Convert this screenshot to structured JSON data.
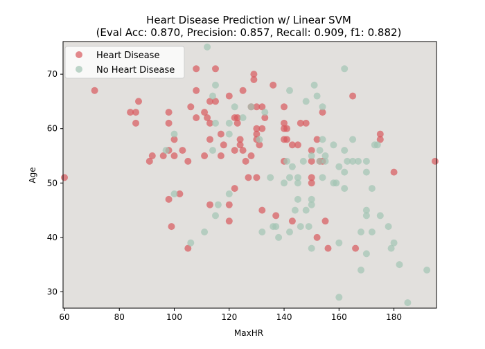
{
  "chart_data": {
    "type": "scatter",
    "title": "Heart Disease Prediction w/ Linear SVM",
    "subtitle": "(Eval Acc: 0.870, Precision: 0.857, Recall: 0.909, f1: 0.882)",
    "xlabel": "MaxHR",
    "ylabel": "Age",
    "xlim": [
      59.5,
      195.5
    ],
    "ylim": [
      27,
      76
    ],
    "xticks": [
      60,
      80,
      100,
      120,
      140,
      160,
      180
    ],
    "yticks": [
      30,
      40,
      50,
      60,
      70
    ],
    "background": "#e2e0dd",
    "legend_position": "upper-left",
    "series": [
      {
        "name": "Heart Disease",
        "color": "#d9585c",
        "points": [
          [
            60,
            51
          ],
          [
            71,
            67
          ],
          [
            84,
            63
          ],
          [
            86,
            63
          ],
          [
            87,
            65
          ],
          [
            86,
            61
          ],
          [
            91,
            54
          ],
          [
            92,
            55
          ],
          [
            96,
            55
          ],
          [
            98,
            63
          ],
          [
            98,
            61
          ],
          [
            98,
            56
          ],
          [
            100,
            58
          ],
          [
            100,
            55
          ],
          [
            98,
            47
          ],
          [
            99,
            42
          ],
          [
            102,
            48
          ],
          [
            103,
            56
          ],
          [
            105,
            54
          ],
          [
            105,
            38
          ],
          [
            106,
            64
          ],
          [
            108,
            71
          ],
          [
            108,
            67
          ],
          [
            108,
            62
          ],
          [
            111,
            63
          ],
          [
            111,
            55
          ],
          [
            112,
            62
          ],
          [
            113,
            65
          ],
          [
            113,
            61
          ],
          [
            113,
            58
          ],
          [
            113,
            46
          ],
          [
            115,
            71
          ],
          [
            115,
            65
          ],
          [
            117,
            59
          ],
          [
            117,
            55
          ],
          [
            118,
            57
          ],
          [
            120,
            66
          ],
          [
            120,
            46
          ],
          [
            120,
            43
          ],
          [
            122,
            56
          ],
          [
            122,
            49
          ],
          [
            122,
            62
          ],
          [
            123,
            62
          ],
          [
            123,
            61
          ],
          [
            124,
            58
          ],
          [
            124,
            57
          ],
          [
            125,
            67
          ],
          [
            125,
            56
          ],
          [
            126,
            54
          ],
          [
            127,
            51
          ],
          [
            128,
            55
          ],
          [
            128,
            64
          ],
          [
            129,
            70
          ],
          [
            129,
            69
          ],
          [
            130,
            64
          ],
          [
            130,
            60
          ],
          [
            130,
            59
          ],
          [
            130,
            58
          ],
          [
            130,
            51
          ],
          [
            131,
            57
          ],
          [
            132,
            64
          ],
          [
            132,
            60
          ],
          [
            132,
            45
          ],
          [
            133,
            62
          ],
          [
            136,
            68
          ],
          [
            137,
            44
          ],
          [
            140,
            64
          ],
          [
            140,
            61
          ],
          [
            140,
            60
          ],
          [
            140,
            58
          ],
          [
            140,
            54
          ],
          [
            141,
            60
          ],
          [
            141,
            58
          ],
          [
            143,
            57
          ],
          [
            143,
            43
          ],
          [
            145,
            57
          ],
          [
            146,
            61
          ],
          [
            148,
            61
          ],
          [
            150,
            56
          ],
          [
            150,
            54
          ],
          [
            150,
            51
          ],
          [
            150,
            50
          ],
          [
            152,
            58
          ],
          [
            152,
            40
          ],
          [
            153,
            54
          ],
          [
            154,
            63
          ],
          [
            154,
            54
          ],
          [
            155,
            43
          ],
          [
            156,
            38
          ],
          [
            165,
            66
          ],
          [
            166,
            38
          ],
          [
            175,
            59
          ],
          [
            175,
            58
          ],
          [
            180,
            52
          ],
          [
            195,
            54
          ]
        ]
      },
      {
        "name": "No Heart Disease",
        "color": "#a3c4b3",
        "points": [
          [
            97,
            56
          ],
          [
            100,
            59
          ],
          [
            100,
            48
          ],
          [
            106,
            39
          ],
          [
            111,
            41
          ],
          [
            112,
            75
          ],
          [
            114,
            66
          ],
          [
            115,
            68
          ],
          [
            114,
            56
          ],
          [
            115,
            61
          ],
          [
            115,
            44
          ],
          [
            116,
            46
          ],
          [
            120,
            61
          ],
          [
            120,
            59
          ],
          [
            120,
            48
          ],
          [
            122,
            64
          ],
          [
            125,
            62
          ],
          [
            128,
            64
          ],
          [
            131,
            58
          ],
          [
            132,
            41
          ],
          [
            133,
            63
          ],
          [
            135,
            51
          ],
          [
            136,
            42
          ],
          [
            137,
            42
          ],
          [
            138,
            40
          ],
          [
            140,
            50
          ],
          [
            141,
            54
          ],
          [
            142,
            67
          ],
          [
            142,
            51
          ],
          [
            142,
            41
          ],
          [
            143,
            53
          ],
          [
            144,
            45
          ],
          [
            145,
            51
          ],
          [
            145,
            50
          ],
          [
            145,
            47
          ],
          [
            146,
            42
          ],
          [
            147,
            54
          ],
          [
            148,
            65
          ],
          [
            148,
            45
          ],
          [
            149,
            42
          ],
          [
            150,
            55
          ],
          [
            150,
            47
          ],
          [
            150,
            46
          ],
          [
            150,
            38
          ],
          [
            151,
            68
          ],
          [
            152,
            66
          ],
          [
            153,
            54
          ],
          [
            153,
            56
          ],
          [
            154,
            64
          ],
          [
            154,
            58
          ],
          [
            154,
            51
          ],
          [
            155,
            55
          ],
          [
            155,
            54
          ],
          [
            158,
            57
          ],
          [
            158,
            50
          ],
          [
            159,
            50
          ],
          [
            160,
            39
          ],
          [
            160,
            53
          ],
          [
            160,
            29
          ],
          [
            162,
            71
          ],
          [
            162,
            56
          ],
          [
            162,
            52
          ],
          [
            162,
            49
          ],
          [
            163,
            54
          ],
          [
            165,
            58
          ],
          [
            165,
            54
          ],
          [
            167,
            54
          ],
          [
            168,
            41
          ],
          [
            168,
            34
          ],
          [
            170,
            54
          ],
          [
            170,
            52
          ],
          [
            170,
            45
          ],
          [
            170,
            44
          ],
          [
            170,
            37
          ],
          [
            172,
            49
          ],
          [
            172,
            41
          ],
          [
            173,
            57
          ],
          [
            174,
            57
          ],
          [
            175,
            44
          ],
          [
            178,
            42
          ],
          [
            179,
            38
          ],
          [
            180,
            39
          ],
          [
            182,
            35
          ],
          [
            185,
            28
          ],
          [
            192,
            34
          ]
        ]
      }
    ]
  }
}
